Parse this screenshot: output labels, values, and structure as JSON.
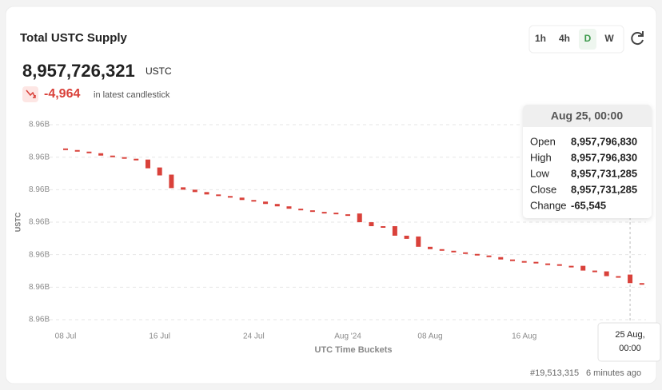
{
  "header": {
    "title": "Total USTC Supply",
    "value": "8,957,726,321",
    "unit": "USTC",
    "change": "-4,964",
    "change_note": "in latest candlestick"
  },
  "intervals": [
    "1h",
    "4h",
    "D",
    "W"
  ],
  "active_interval": "D",
  "chart_data": {
    "type": "candlestick",
    "color": "#d9413a",
    "y_label": "USTC",
    "x_label": "UTC Time Buckets",
    "categories": [
      "08 Jul",
      null,
      null,
      null,
      null,
      null,
      null,
      null,
      "16 Jul",
      null,
      null,
      null,
      null,
      null,
      null,
      null,
      "24 Jul",
      null,
      null,
      null,
      null,
      null,
      null,
      null,
      "Aug '24",
      null,
      null,
      null,
      null,
      null,
      null,
      "08 Aug",
      null,
      null,
      null,
      null,
      null,
      null,
      null,
      "16 Aug",
      null,
      null,
      null,
      null,
      null,
      null,
      null,
      null,
      null,
      null
    ],
    "open": [
      8958767000,
      8958754800,
      8958742600,
      8958730400,
      8958712100,
      8958699900,
      8958687700,
      8958681600,
      8958620600,
      8958565700,
      8958468100,
      8958449800,
      8958431500,
      8958413200,
      8958401000,
      8958388800,
      8958370500,
      8958358300,
      8958340000,
      8958321700,
      8958303400,
      8958291200,
      8958279000,
      8958272900,
      8958260700,
      8958266800,
      8958199700,
      8958169200,
      8958169200,
      8958096000,
      8958089900,
      8958010600,
      8957992300,
      8957980100,
      8957967900,
      8957955700,
      8957943500,
      8957931300,
      8957913000,
      8957900800,
      8957894700,
      8957882500,
      8957876400,
      8957864200,
      8957864200,
      8957827600,
      8957821500,
      8957784900,
      8957796830,
      8957731285
    ],
    "close": [
      8958754800,
      8958742600,
      8958730400,
      8958712100,
      8958699900,
      8958687700,
      8958675500,
      8958614500,
      8958559600,
      8958462000,
      8958449800,
      8958431500,
      8958413200,
      8958401000,
      8958388800,
      8958370500,
      8958358300,
      8958340000,
      8958321700,
      8958303400,
      8958291200,
      8958279000,
      8958272900,
      8958260700,
      8958254600,
      8958199700,
      8958169200,
      8958163100,
      8958096000,
      8958071600,
      8958010600,
      8957992300,
      8957980100,
      8957967900,
      8957955700,
      8957943500,
      8957931300,
      8957913000,
      8957900800,
      8957894700,
      8957882500,
      8957876400,
      8957864200,
      8957858100,
      8957827600,
      8957815400,
      8957784900,
      8957778800,
      8957731285,
      8957726321
    ],
    "ylim": [
      8957450000,
      8958950000
    ],
    "yticks": [
      {
        "value": 8957450000,
        "label": "8.96B"
      },
      {
        "value": 8957700000,
        "label": "8.96B"
      },
      {
        "value": 8957950000,
        "label": "8.96B"
      },
      {
        "value": 8958200000,
        "label": "8.96B"
      },
      {
        "value": 8958450000,
        "label": "8.96B"
      },
      {
        "value": 8958700000,
        "label": "8.96B"
      },
      {
        "value": 8958950000,
        "label": "8.96B"
      }
    ],
    "grid": true,
    "highlight_index": 48,
    "crosshair_label": [
      "25 Aug,",
      "00:00"
    ]
  },
  "tooltip": {
    "title": "Aug 25, 00:00",
    "rows": [
      [
        "Open",
        "8,957,796,830"
      ],
      [
        "High",
        "8,957,796,830"
      ],
      [
        "Low",
        "8,957,731,285"
      ],
      [
        "Close",
        "8,957,731,285"
      ],
      [
        "Change",
        "-65,545"
      ]
    ]
  },
  "footer": {
    "block": "#19,513,315",
    "age": "6 minutes ago"
  }
}
